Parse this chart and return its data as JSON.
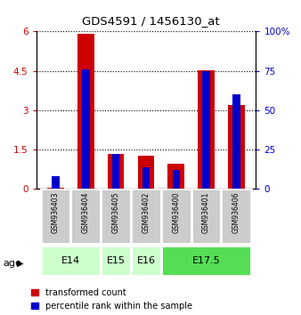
{
  "title": "GDS4591 / 1456130_at",
  "samples": [
    "GSM936403",
    "GSM936404",
    "GSM936405",
    "GSM936402",
    "GSM936400",
    "GSM936401",
    "GSM936406"
  ],
  "transformed_counts": [
    0.05,
    5.9,
    1.35,
    1.28,
    0.95,
    4.52,
    3.2
  ],
  "percentile_ranks_pct": [
    8,
    76,
    22,
    14,
    12,
    75,
    60
  ],
  "age_groups": [
    {
      "label": "E14",
      "samples": [
        0,
        1
      ],
      "color": "#ccffcc"
    },
    {
      "label": "E15",
      "samples": [
        2
      ],
      "color": "#ccffcc"
    },
    {
      "label": "E16",
      "samples": [
        3
      ],
      "color": "#ccffcc"
    },
    {
      "label": "E17.5",
      "samples": [
        4,
        5,
        6
      ],
      "color": "#55dd55"
    }
  ],
  "bar_color_red": "#cc0000",
  "bar_color_blue": "#0000cc",
  "red_bar_width": 0.55,
  "blue_bar_width": 0.25,
  "ylim_left": [
    0,
    6
  ],
  "ylim_right": [
    0,
    100
  ],
  "yticks_left": [
    0,
    1.5,
    3,
    4.5,
    6
  ],
  "yticks_right": [
    0,
    25,
    50,
    75,
    100
  ],
  "ytick_labels_left": [
    "0",
    "1.5",
    "3",
    "4.5",
    "6"
  ],
  "ytick_labels_right": [
    "0",
    "25",
    "50",
    "75",
    "100%"
  ],
  "legend_labels": [
    "transformed count",
    "percentile rank within the sample"
  ],
  "age_label": "age",
  "sample_box_color": "#cccccc",
  "bg_color": "#ffffff"
}
